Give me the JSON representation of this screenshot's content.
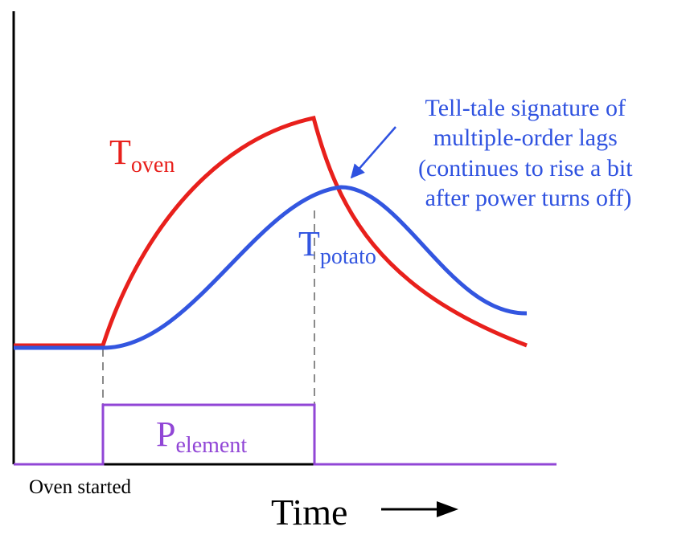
{
  "labels": {
    "t_oven": {
      "main": "T",
      "sub": "oven"
    },
    "t_potato": {
      "main": "T",
      "sub": "potato"
    },
    "p_element": {
      "main": "P",
      "sub": "element"
    },
    "annotation": [
      "Tell-tale signature of",
      "multiple-order lags",
      "(continues to rise a bit",
      "after power turns off)"
    ],
    "oven_started": "Oven started",
    "time": "Time"
  },
  "colors": {
    "oven": "#e8201c",
    "potato": "#3356e0",
    "element": "#9146d6",
    "axis": "#000000",
    "dashed": "#8a8a8a",
    "annotation": "#2f52e0"
  },
  "icons": {
    "annotation_arrow": "arrow-icon",
    "time_arrow": "right-arrow-icon"
  }
}
